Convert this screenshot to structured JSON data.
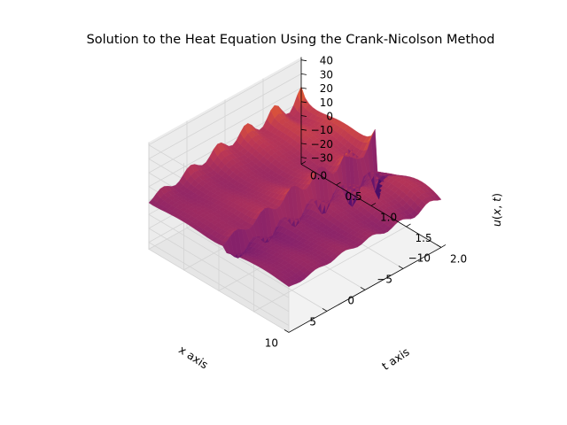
{
  "chart_data": {
    "type": "surface",
    "title": "Solution to the Heat Equation Using the Crank-Nicolson Method",
    "xlabel": "x axis",
    "ylabel": "t axis",
    "zlabel": "u(x, t)",
    "xlim": [
      -10,
      10
    ],
    "tlim": [
      0,
      2
    ],
    "zlim": [
      -35,
      42
    ],
    "x_ticks": [
      "10",
      "5",
      "0",
      "−5",
      "−10"
    ],
    "t_ticks": [
      "0.0",
      "0.5",
      "1.0",
      "1.5",
      "2.0"
    ],
    "z_ticks": [
      "−30",
      "−20",
      "−10",
      "0",
      "10",
      "20",
      "30",
      "40"
    ],
    "colormap": "inferno",
    "grid": true,
    "pane_color": "#f2f2f2",
    "grid_color": "#cccccc"
  }
}
